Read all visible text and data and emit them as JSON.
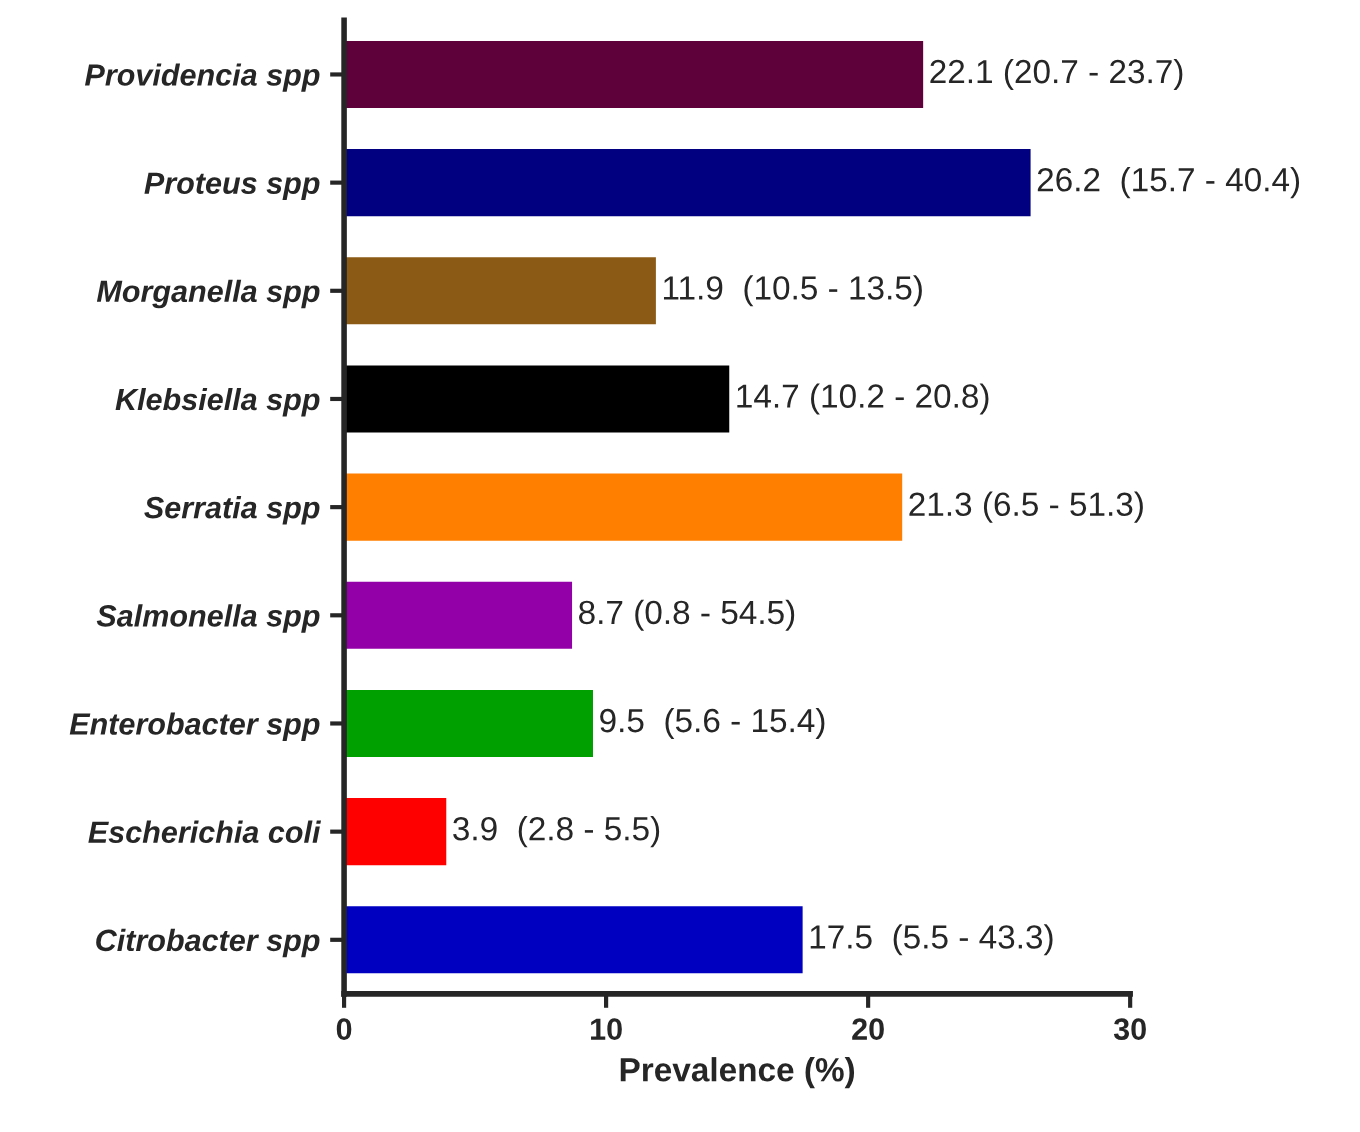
{
  "chart_data": {
    "type": "bar",
    "orientation": "horizontal",
    "xlabel": "Prevalence (%)",
    "categories": [
      "Providencia spp",
      "Proteus spp",
      "Morganella spp",
      "Klebsiella spp",
      "Serratia spp",
      "Salmonella spp",
      "Enterobacter spp",
      "Escherichia coli",
      "Citrobacter spp"
    ],
    "values": [
      22.1,
      26.2,
      11.9,
      14.7,
      21.3,
      8.7,
      9.5,
      3.9,
      17.5
    ],
    "colors": [
      "#5e0039",
      "#000080",
      "#8b5a14",
      "#000000",
      "#ff7f00",
      "#9400a8",
      "#00a000",
      "#ff0000",
      "#0000c0"
    ],
    "value_labels": [
      "22.1 (20.7 - 23.7)",
      "26.2  (15.7 - 40.4)",
      "11.9  (10.5 - 13.5)",
      "14.7 (10.2 - 20.8)",
      "21.3 (6.5 - 51.3)",
      "8.7 (0.8 - 54.5)",
      "9.5  (5.6 - 15.4)",
      "3.9  (2.8 - 5.5)",
      "17.5  (5.5 - 43.3)"
    ],
    "xlim": [
      0,
      30
    ],
    "xticks": [
      0,
      10,
      20,
      30
    ],
    "grid": false,
    "legend": false
  }
}
